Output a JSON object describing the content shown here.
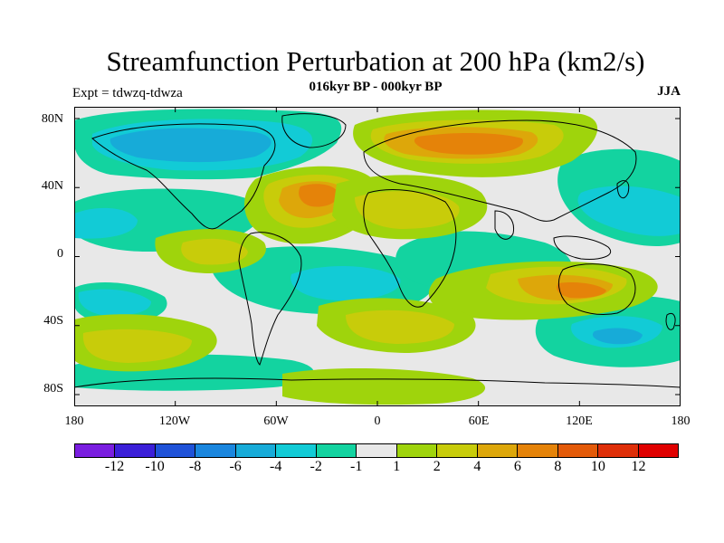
{
  "title": "Streamfunction Perturbation at 200 hPa (km2/s)",
  "subtitle": "016kyr BP - 000kyr BP",
  "left_label": "Expt = tdwzq-tdwza",
  "season": "JJA",
  "y_ticks": [
    "80N",
    "40N",
    "0",
    "40S",
    "80S"
  ],
  "x_ticks": [
    "180",
    "120W",
    "60W",
    "0",
    "60E",
    "120E",
    "180"
  ],
  "colorbar": {
    "labels": [
      "-12",
      "-10",
      "-8",
      "-6",
      "-4",
      "-2",
      "-1",
      "1",
      "2",
      "4",
      "6",
      "8",
      "10",
      "12"
    ],
    "colors": [
      "#7a1ee0",
      "#3b1fd8",
      "#1f52d8",
      "#1a86de",
      "#17abd8",
      "#12cbd6",
      "#13d3a0",
      "#e8e8e8",
      "#9fd40c",
      "#c8cc0a",
      "#dda70a",
      "#e58309",
      "#e35a09",
      "#df2f09",
      "#e00000"
    ]
  }
}
